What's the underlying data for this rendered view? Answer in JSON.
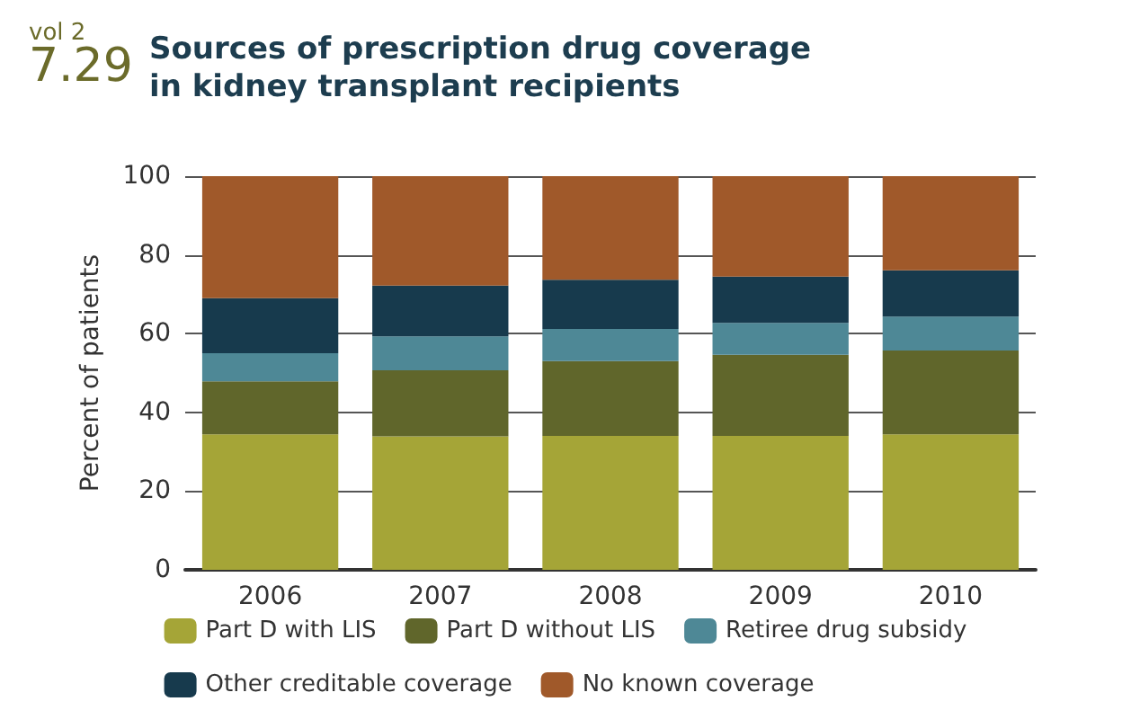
{
  "chart_data": {
    "type": "bar",
    "title": "Sources of prescription drug coverage\nin kidney transplant recipients",
    "annotations": [
      "vol 2",
      "7.29"
    ],
    "ylabel": "Percent of patients",
    "categories": [
      "2006",
      "2007",
      "2008",
      "2009",
      "2010"
    ],
    "stacked": true,
    "series": [
      {
        "name": "Part D with LIS",
        "color": "#a5a537",
        "values": [
          34.4,
          33.9,
          34,
          34,
          34.4
        ]
      },
      {
        "name": "Part D without LIS",
        "color": "#60662b",
        "values": [
          13.5,
          16.8,
          19,
          20.6,
          21.3
        ]
      },
      {
        "name": "Retiree drug subsidy",
        "color": "#4e8896",
        "values": [
          7.1,
          8.6,
          8.2,
          8.1,
          8.6
        ]
      },
      {
        "name": "Other creditable coverage",
        "color": "#173a4d",
        "values": [
          14,
          12.9,
          12.5,
          11.8,
          11.8
        ]
      },
      {
        "name": "No known coverage",
        "color": "#a0592a",
        "values": [
          31,
          27.8,
          26.3,
          25.5,
          23.9
        ]
      }
    ],
    "ylim": [
      0,
      100
    ],
    "yticks": [
      0,
      20,
      40,
      60,
      80,
      100
    ],
    "grid": "y",
    "legend": "bottom"
  }
}
